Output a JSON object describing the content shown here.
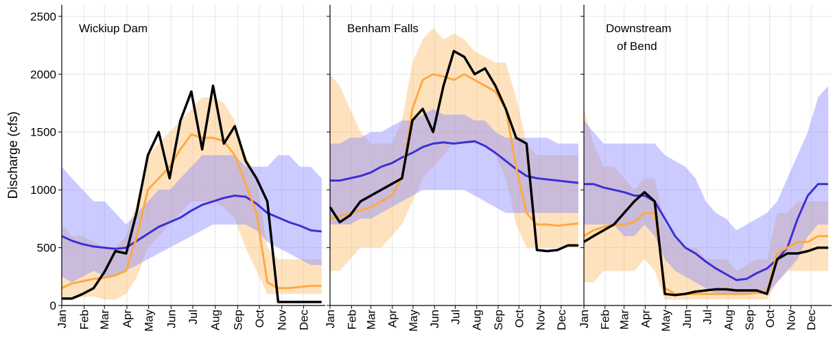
{
  "chart_data": [
    {
      "type": "line",
      "title": [
        "Wickiup Dam"
      ],
      "ylabel": "Discharge (cfs)",
      "grid": true,
      "x": [
        1,
        15,
        30,
        45,
        60,
        75,
        90,
        105,
        120,
        135,
        150,
        165,
        180,
        195,
        210,
        225,
        240,
        255,
        270,
        285,
        300,
        315,
        330,
        345,
        360
      ],
      "xlim": [
        1,
        365
      ],
      "xticks": [
        {
          "value": 1,
          "label": "Jan"
        },
        {
          "value": 32,
          "label": "Feb"
        },
        {
          "value": 60,
          "label": "Mar"
        },
        {
          "value": 91,
          "label": "Apr"
        },
        {
          "value": 121,
          "label": "May"
        },
        {
          "value": 152,
          "label": "Jun"
        },
        {
          "value": 182,
          "label": "Jul"
        },
        {
          "value": 213,
          "label": "Aug"
        },
        {
          "value": 244,
          "label": "Sep"
        },
        {
          "value": 274,
          "label": "Oct"
        },
        {
          "value": 305,
          "label": "Nov"
        },
        {
          "value": 335,
          "label": "Dec"
        }
      ],
      "ylim": [
        0,
        2600
      ],
      "yticks": [
        0,
        500,
        1000,
        1500,
        2000,
        2500
      ],
      "bands": [
        {
          "color": "#fdbf6f",
          "low": [
            50,
            60,
            70,
            80,
            50,
            50,
            100,
            250,
            500,
            600,
            700,
            800,
            900,
            900,
            900,
            850,
            750,
            500,
            300,
            100,
            100,
            100,
            100,
            100,
            100
          ],
          "high": [
            700,
            600,
            600,
            550,
            500,
            500,
            600,
            900,
            1300,
            1400,
            1500,
            1600,
            1700,
            1800,
            1800,
            1750,
            1600,
            1300,
            1100,
            500,
            400,
            400,
            400,
            400,
            400
          ]
        },
        {
          "color": "#8c8cff",
          "low": [
            250,
            200,
            250,
            300,
            250,
            250,
            300,
            350,
            400,
            450,
            500,
            550,
            600,
            650,
            700,
            700,
            700,
            700,
            650,
            550,
            500,
            450,
            400,
            350,
            350
          ],
          "high": [
            1200,
            1100,
            1000,
            900,
            900,
            800,
            700,
            800,
            900,
            1000,
            1000,
            1100,
            1200,
            1300,
            1300,
            1300,
            1300,
            1200,
            1200,
            1200,
            1300,
            1300,
            1200,
            1200,
            1100
          ]
        }
      ],
      "series": [
        {
          "color": "#3a2fd6",
          "values": [
            600,
            560,
            530,
            510,
            500,
            490,
            500,
            560,
            620,
            680,
            720,
            760,
            820,
            870,
            900,
            930,
            950,
            940,
            880,
            800,
            760,
            720,
            690,
            650,
            640
          ]
        },
        {
          "color": "#ffa940",
          "values": [
            150,
            190,
            210,
            230,
            240,
            260,
            300,
            600,
            1000,
            1100,
            1200,
            1350,
            1480,
            1450,
            1450,
            1420,
            1300,
            1050,
            800,
            200,
            150,
            150,
            160,
            170,
            170
          ]
        },
        {
          "color": "#000000",
          "values": [
            60,
            60,
            100,
            150,
            290,
            470,
            450,
            820,
            1300,
            1500,
            1100,
            1600,
            1850,
            1350,
            1900,
            1400,
            1550,
            1250,
            1100,
            900,
            30,
            30,
            30,
            30,
            30
          ]
        }
      ]
    },
    {
      "type": "line",
      "title": [
        "Benham Falls"
      ],
      "grid": true,
      "x": [
        1,
        15,
        30,
        45,
        60,
        75,
        90,
        105,
        120,
        135,
        150,
        165,
        180,
        195,
        210,
        225,
        240,
        255,
        270,
        285,
        300,
        315,
        330,
        345,
        360
      ],
      "xlim": [
        1,
        365
      ],
      "xticks": [
        {
          "value": 1,
          "label": "Jan"
        },
        {
          "value": 32,
          "label": "Feb"
        },
        {
          "value": 60,
          "label": "Mar"
        },
        {
          "value": 91,
          "label": "Apr"
        },
        {
          "value": 121,
          "label": "May"
        },
        {
          "value": 152,
          "label": "Jun"
        },
        {
          "value": 182,
          "label": "Jul"
        },
        {
          "value": 213,
          "label": "Aug"
        },
        {
          "value": 244,
          "label": "Sep"
        },
        {
          "value": 274,
          "label": "Oct"
        },
        {
          "value": 305,
          "label": "Nov"
        },
        {
          "value": 335,
          "label": "Dec"
        }
      ],
      "ylim": [
        0,
        2600
      ],
      "yticks": [
        0,
        500,
        1000,
        1500,
        2000,
        2500
      ],
      "bands": [
        {
          "color": "#fdbf6f",
          "low": [
            300,
            300,
            400,
            500,
            500,
            500,
            600,
            700,
            900,
            1100,
            1200,
            1300,
            1400,
            1400,
            1400,
            1400,
            1300,
            1100,
            700,
            500,
            500,
            500,
            500,
            500,
            500
          ],
          "high": [
            2000,
            1900,
            1700,
            1500,
            1400,
            1400,
            1400,
            1600,
            2100,
            2300,
            2400,
            2300,
            2350,
            2300,
            2200,
            2150,
            2100,
            2100,
            1800,
            1400,
            1300,
            1300,
            1300,
            1300,
            1300
          ]
        },
        {
          "color": "#8c8cff",
          "low": [
            700,
            700,
            700,
            750,
            750,
            800,
            850,
            900,
            950,
            1000,
            1000,
            1000,
            1000,
            1000,
            950,
            900,
            850,
            800,
            800,
            800,
            800,
            800,
            800,
            800,
            800
          ],
          "high": [
            1400,
            1400,
            1450,
            1450,
            1500,
            1500,
            1550,
            1600,
            1600,
            1650,
            1700,
            1650,
            1650,
            1650,
            1600,
            1600,
            1500,
            1450,
            1450,
            1450,
            1450,
            1450,
            1400,
            1400,
            1400
          ]
        }
      ],
      "series": [
        {
          "color": "#3a2fd6",
          "values": [
            1080,
            1080,
            1100,
            1120,
            1150,
            1200,
            1230,
            1280,
            1320,
            1370,
            1400,
            1410,
            1400,
            1410,
            1420,
            1380,
            1320,
            1250,
            1180,
            1120,
            1100,
            1090,
            1080,
            1070,
            1060
          ]
        },
        {
          "color": "#ffa940",
          "values": [
            750,
            770,
            800,
            820,
            850,
            900,
            950,
            1100,
            1700,
            1950,
            2000,
            1980,
            1950,
            2000,
            1950,
            1900,
            1850,
            1700,
            1200,
            800,
            700,
            700,
            690,
            700,
            710
          ]
        },
        {
          "color": "#000000",
          "values": [
            850,
            720,
            780,
            900,
            950,
            1000,
            1050,
            1100,
            1600,
            1700,
            1500,
            1900,
            2200,
            2150,
            2000,
            2050,
            1900,
            1700,
            1450,
            1400,
            480,
            470,
            480,
            520,
            520
          ]
        }
      ]
    },
    {
      "type": "line",
      "title": [
        "Downstream",
        "of Bend"
      ],
      "grid": true,
      "x": [
        1,
        15,
        30,
        45,
        60,
        75,
        90,
        105,
        120,
        135,
        150,
        165,
        180,
        195,
        210,
        225,
        240,
        255,
        270,
        285,
        300,
        315,
        330,
        345,
        360
      ],
      "xlim": [
        1,
        365
      ],
      "xticks": [
        {
          "value": 1,
          "label": "Jan"
        },
        {
          "value": 32,
          "label": "Feb"
        },
        {
          "value": 60,
          "label": "Mar"
        },
        {
          "value": 91,
          "label": "Apr"
        },
        {
          "value": 121,
          "label": "May"
        },
        {
          "value": 152,
          "label": "Jun"
        },
        {
          "value": 182,
          "label": "Jul"
        },
        {
          "value": 213,
          "label": "Aug"
        },
        {
          "value": 244,
          "label": "Sep"
        },
        {
          "value": 274,
          "label": "Oct"
        },
        {
          "value": 305,
          "label": "Nov"
        },
        {
          "value": 335,
          "label": "Dec"
        }
      ],
      "ylim": [
        0,
        2600
      ],
      "yticks": [
        0,
        500,
        1000,
        1500,
        2000,
        2500
      ],
      "bands": [
        {
          "color": "#fdbf6f",
          "low": [
            200,
            200,
            300,
            300,
            300,
            300,
            400,
            300,
            50,
            50,
            50,
            50,
            50,
            50,
            50,
            50,
            50,
            50,
            50,
            200,
            300,
            300,
            300,
            300,
            300
          ],
          "high": [
            1700,
            1400,
            1200,
            1200,
            1100,
            1000,
            1100,
            1100,
            700,
            600,
            500,
            500,
            400,
            400,
            400,
            300,
            350,
            400,
            400,
            800,
            800,
            900,
            900,
            900,
            900
          ]
        },
        {
          "color": "#8c8cff",
          "low": [
            700,
            700,
            700,
            700,
            600,
            600,
            700,
            600,
            400,
            300,
            250,
            200,
            150,
            100,
            100,
            100,
            100,
            100,
            100,
            200,
            300,
            400,
            600,
            700,
            700
          ],
          "high": [
            1600,
            1500,
            1400,
            1400,
            1400,
            1400,
            1400,
            1400,
            1300,
            1250,
            1200,
            1100,
            900,
            800,
            750,
            650,
            700,
            750,
            800,
            900,
            1100,
            1300,
            1500,
            1800,
            1900
          ]
        }
      ],
      "series": [
        {
          "color": "#3a2fd6",
          "values": [
            1050,
            1050,
            1020,
            1000,
            980,
            950,
            950,
            900,
            750,
            600,
            500,
            450,
            380,
            320,
            270,
            220,
            230,
            280,
            320,
            400,
            500,
            750,
            950,
            1050,
            1050
          ]
        },
        {
          "color": "#ffa940",
          "values": [
            600,
            650,
            680,
            700,
            700,
            720,
            800,
            800,
            150,
            100,
            100,
            100,
            100,
            100,
            100,
            100,
            100,
            110,
            120,
            450,
            500,
            550,
            550,
            600,
            600
          ]
        },
        {
          "color": "#000000",
          "values": [
            550,
            600,
            650,
            700,
            800,
            900,
            980,
            900,
            100,
            90,
            100,
            120,
            130,
            140,
            140,
            130,
            130,
            130,
            100,
            400,
            450,
            450,
            470,
            500,
            500
          ]
        }
      ]
    }
  ]
}
